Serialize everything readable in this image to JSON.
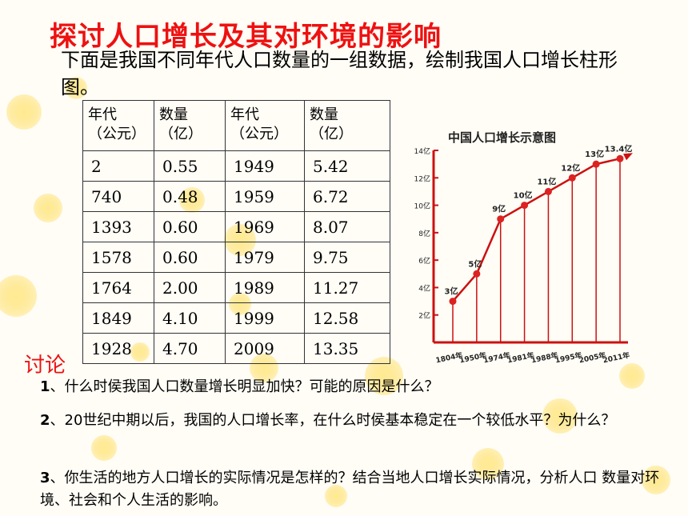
{
  "title": "探讨人口增长及其对环境的影响",
  "intro": "下面是我国不同年代人口数量的一组数据，绘制我国人口增长柱形图。",
  "table": {
    "headers": [
      "年代\n（公元）",
      "数量\n（亿）",
      "年代\n（公元）",
      "数量\n（亿）"
    ],
    "rows": [
      [
        "2",
        "0.55",
        "1949",
        "5.42"
      ],
      [
        "740",
        "0.48",
        "1959",
        "6.72"
      ],
      [
        "1393",
        "0.60",
        "1969",
        "8.07"
      ],
      [
        "1578",
        "0.60",
        "1979",
        "9.75"
      ],
      [
        "1764",
        "2.00",
        "1989",
        "11.27"
      ],
      [
        "1849",
        "4.10",
        "1999",
        "12.58"
      ],
      [
        "1928",
        "4.70",
        "2009",
        "13.35"
      ]
    ]
  },
  "chart_data": {
    "type": "line",
    "title": "中国人口增长示意图",
    "categories": [
      "1804年",
      "1950年",
      "1974年",
      "1981年",
      "1988年",
      "1995年",
      "2005年",
      "2011年"
    ],
    "series": [
      {
        "values": [
          3,
          5,
          9,
          10,
          11,
          12,
          13,
          13.4
        ]
      }
    ],
    "data_labels": [
      "3亿",
      "5亿",
      "9亿",
      "10亿",
      "11亿",
      "12亿",
      "13亿",
      "13.4亿"
    ],
    "y_ticks": [
      "2亿",
      "4亿",
      "6亿",
      "8亿",
      "10亿",
      "12亿",
      "14亿"
    ],
    "ylim": [
      0,
      14
    ],
    "grid": false,
    "colors": {
      "line": "#cc1111",
      "points": "#dd2222",
      "axis": "#cc1111"
    }
  },
  "discussion": {
    "label": "讨论",
    "questions": [
      {
        "num": "1",
        "text": "、什么时侯我国人口数量增长明显加快？可能的原因是什么？"
      },
      {
        "num": "2",
        "text": "、20世纪中期以后，我国的人口增长率，在什么时侯基本稳定在一个较低水平？为什么？"
      },
      {
        "num": "3",
        "text": "、你生活的地方人口增长的实际情况是怎样的？结合当地人口增长实际情况，分析人口 数量对环境、社会和个人生活的影响。"
      }
    ]
  }
}
